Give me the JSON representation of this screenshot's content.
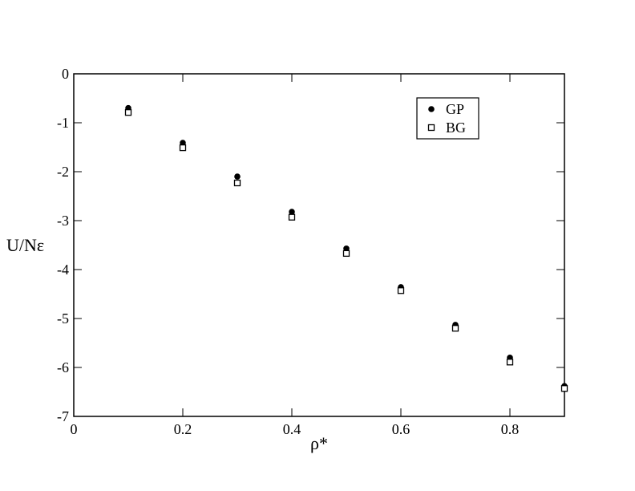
{
  "chart_data": {
    "type": "scatter",
    "x_label": "ρ*",
    "y_label": "U/Nε",
    "xlim": [
      0,
      0.9
    ],
    "ylim": [
      -7,
      0
    ],
    "xticks": [
      0,
      0.2,
      0.4,
      0.6,
      0.8
    ],
    "yticks": [
      -7,
      -6,
      -5,
      -4,
      -3,
      -2,
      -1,
      0
    ],
    "legend": "upper right",
    "series": [
      {
        "name": "GP",
        "color": "#000000",
        "marker": "filled-circle",
        "x": [
          0.1,
          0.2,
          0.3,
          0.4,
          0.5,
          0.6,
          0.7,
          0.8,
          0.9
        ],
        "values": [
          -0.7,
          -1.41,
          -2.1,
          -2.82,
          -3.57,
          -4.36,
          -5.13,
          -5.8,
          -6.38
        ]
      },
      {
        "name": "BG",
        "color": "#000000",
        "marker": "open-square",
        "x": [
          0.1,
          0.2,
          0.3,
          0.4,
          0.5,
          0.6,
          0.7,
          0.8,
          0.9
        ],
        "values": [
          -0.79,
          -1.51,
          -2.23,
          -2.93,
          -3.67,
          -4.43,
          -5.2,
          -5.89,
          -6.43
        ]
      }
    ]
  }
}
